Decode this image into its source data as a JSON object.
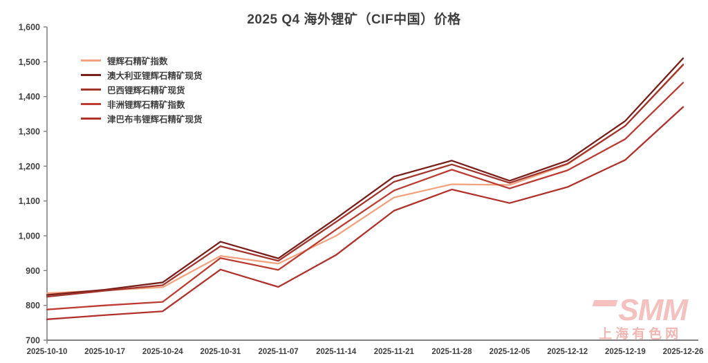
{
  "title": "2025 Q4 海外锂矿（CIF中国）价格",
  "watermark": {
    "logo": "SMM",
    "name": "上海有色网"
  },
  "style": {
    "axis_color": "#808080",
    "label_color": "#3f3f3f",
    "background": "#ffffff"
  },
  "chart_data": {
    "type": "line",
    "title": "2025 Q4 海外锂矿（CIF中国）价格",
    "xlabel": "",
    "ylabel": "",
    "ylim": [
      700,
      1600
    ],
    "y_tick_step": 100,
    "y_tick_labels": [
      "700",
      "800",
      "900",
      "1,000",
      "1,100",
      "1,200",
      "1,300",
      "1,400",
      "1,500",
      "1,600"
    ],
    "grid": false,
    "legend_position": "upper-left-inside",
    "categories": [
      "2025-10-10",
      "2025-10-17",
      "2025-10-24",
      "2025-10-31",
      "2025-11-07",
      "2025-11-14",
      "2025-11-21",
      "2025-11-28",
      "2025-12-05",
      "2025-12-12",
      "2025-12-19",
      "2025-12-26"
    ],
    "series": [
      {
        "name": "锂辉石精矿指数",
        "color": "#F2A27E",
        "values": [
          835,
          843,
          852,
          942,
          920,
          1000,
          1110,
          1148,
          1146,
          1205,
          1316,
          1490
        ]
      },
      {
        "name": "澳大利亚锂辉石精矿现货",
        "color": "#7A1E19",
        "values": [
          830,
          845,
          866,
          983,
          935,
          1050,
          1170,
          1216,
          1158,
          1216,
          1330,
          1510
        ]
      },
      {
        "name": "巴西锂辉石精矿现货",
        "color": "#A2342C",
        "values": [
          825,
          842,
          858,
          970,
          928,
          1040,
          1155,
          1205,
          1152,
          1207,
          1316,
          1492
        ]
      },
      {
        "name": "非洲锂辉石精矿指数",
        "color": "#BE3B31",
        "values": [
          788,
          800,
          810,
          936,
          902,
          1018,
          1130,
          1190,
          1136,
          1188,
          1278,
          1440
        ]
      },
      {
        "name": "津巴布韦锂辉石精矿现货",
        "color": "#B2312B",
        "values": [
          760,
          772,
          783,
          903,
          853,
          945,
          1072,
          1133,
          1094,
          1140,
          1218,
          1370
        ]
      }
    ]
  }
}
